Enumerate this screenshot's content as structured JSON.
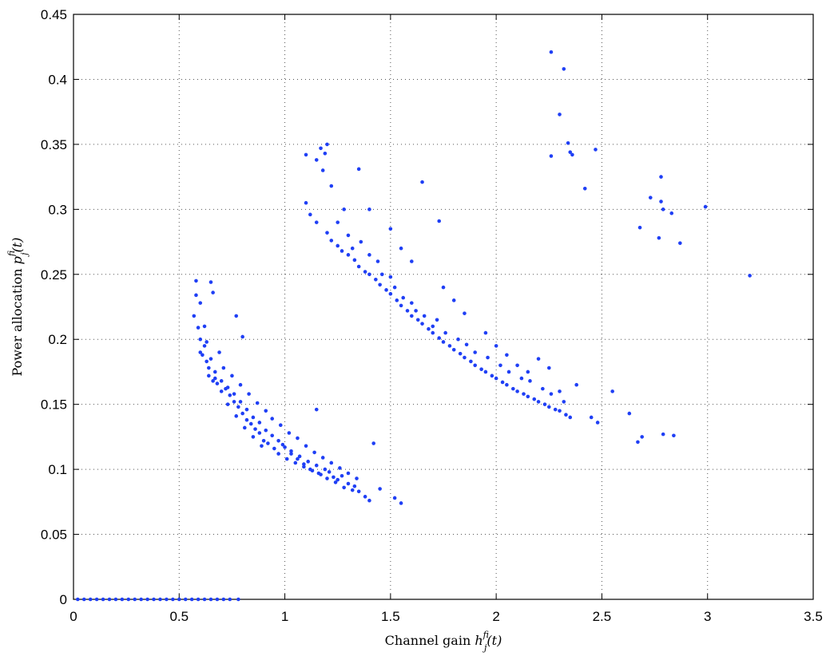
{
  "chart_data": {
    "type": "scatter",
    "title": "",
    "xlabel_text": "Channel gain ",
    "xlabel_math": {
      "base": "h",
      "sup": "f",
      "sub": "ij",
      "arg": "(t)"
    },
    "ylabel_text": "Power allocation ",
    "ylabel_math": {
      "base": "p",
      "sup": "f",
      "sub": "ij",
      "arg": "(t)"
    },
    "xlim": [
      0,
      3.5
    ],
    "ylim": [
      0,
      0.45
    ],
    "xticks": [
      0,
      0.5,
      1,
      1.5,
      2,
      2.5,
      3,
      3.5
    ],
    "xtick_labels": [
      "0",
      "0.5",
      "1",
      "1.5",
      "2",
      "2.5",
      "3",
      "3.5"
    ],
    "yticks": [
      0,
      0.05,
      0.1,
      0.15,
      0.2,
      0.25,
      0.3,
      0.35,
      0.4,
      0.45
    ],
    "ytick_labels": [
      "0",
      "0.05",
      "0.1",
      "0.15",
      "0.2",
      "0.25",
      "0.3",
      "0.35",
      "0.4",
      "0.45"
    ],
    "grid": true,
    "marker_color": "#1f3ff5",
    "series": [
      {
        "points": [
          [
            0.02,
            0
          ],
          [
            0.05,
            0
          ],
          [
            0.08,
            0
          ],
          [
            0.11,
            0
          ],
          [
            0.14,
            0
          ],
          [
            0.17,
            0
          ],
          [
            0.2,
            0
          ],
          [
            0.23,
            0
          ],
          [
            0.26,
            0
          ],
          [
            0.29,
            0
          ],
          [
            0.32,
            0
          ],
          [
            0.35,
            0
          ],
          [
            0.38,
            0
          ],
          [
            0.41,
            0
          ],
          [
            0.44,
            0
          ],
          [
            0.47,
            0
          ],
          [
            0.5,
            0
          ],
          [
            0.53,
            0
          ],
          [
            0.56,
            0
          ],
          [
            0.59,
            0
          ],
          [
            0.62,
            0
          ],
          [
            0.65,
            0
          ],
          [
            0.68,
            0
          ],
          [
            0.71,
            0
          ],
          [
            0.74,
            0
          ],
          [
            0.78,
            0
          ],
          [
            0.58,
            0.245
          ],
          [
            0.58,
            0.234
          ],
          [
            0.6,
            0.228
          ],
          [
            0.57,
            0.218
          ],
          [
            0.59,
            0.209
          ],
          [
            0.6,
            0.2
          ],
          [
            0.62,
            0.195
          ],
          [
            0.61,
            0.188
          ],
          [
            0.63,
            0.183
          ],
          [
            0.64,
            0.178
          ],
          [
            0.65,
            0.244
          ],
          [
            0.66,
            0.236
          ],
          [
            0.64,
            0.172
          ],
          [
            0.67,
            0.175
          ],
          [
            0.68,
            0.166
          ],
          [
            0.66,
            0.168
          ],
          [
            0.7,
            0.16
          ],
          [
            0.72,
            0.162
          ],
          [
            0.74,
            0.157
          ],
          [
            0.73,
            0.15
          ],
          [
            0.76,
            0.152
          ],
          [
            0.78,
            0.148
          ],
          [
            0.77,
            0.141
          ],
          [
            0.8,
            0.143
          ],
          [
            0.82,
            0.138
          ],
          [
            0.81,
            0.132
          ],
          [
            0.84,
            0.135
          ],
          [
            0.86,
            0.131
          ],
          [
            0.85,
            0.125
          ],
          [
            0.88,
            0.128
          ],
          [
            0.9,
            0.122
          ],
          [
            0.89,
            0.118
          ],
          [
            0.92,
            0.12
          ],
          [
            0.95,
            0.116
          ],
          [
            0.97,
            0.112
          ],
          [
            0.99,
            0.119
          ],
          [
            1.01,
            0.108
          ],
          [
            1.03,
            0.114
          ],
          [
            1.05,
            0.105
          ],
          [
            1.07,
            0.11
          ],
          [
            1.09,
            0.102
          ],
          [
            1.11,
            0.106
          ],
          [
            1.13,
            0.099
          ],
          [
            1.15,
            0.103
          ],
          [
            1.17,
            0.096
          ],
          [
            1.19,
            0.1
          ],
          [
            1.21,
            0.098
          ],
          [
            1.23,
            0.094
          ],
          [
            1.25,
            0.092
          ],
          [
            1.27,
            0.095
          ],
          [
            1.3,
            0.089
          ],
          [
            1.33,
            0.087
          ],
          [
            1.35,
            0.083
          ],
          [
            1.38,
            0.079
          ],
          [
            1.4,
            0.076
          ],
          [
            1.45,
            0.085
          ],
          [
            1.52,
            0.078
          ],
          [
            1.55,
            0.074
          ],
          [
            1.42,
            0.12
          ],
          [
            1.15,
            0.146
          ],
          [
            0.8,
            0.202
          ],
          [
            0.77,
            0.218
          ],
          [
            0.62,
            0.21
          ],
          [
            0.69,
            0.19
          ],
          [
            0.71,
            0.178
          ],
          [
            0.75,
            0.172
          ],
          [
            0.79,
            0.165
          ],
          [
            0.83,
            0.158
          ],
          [
            0.87,
            0.151
          ],
          [
            0.91,
            0.145
          ],
          [
            0.94,
            0.139
          ],
          [
            0.98,
            0.134
          ],
          [
            1.02,
            0.128
          ],
          [
            1.06,
            0.124
          ],
          [
            1.1,
            0.118
          ],
          [
            1.14,
            0.113
          ],
          [
            1.18,
            0.109
          ],
          [
            1.22,
            0.105
          ],
          [
            1.26,
            0.101
          ],
          [
            1.3,
            0.097
          ],
          [
            1.34,
            0.093
          ],
          [
            0.6,
            0.19
          ],
          [
            0.63,
            0.198
          ],
          [
            0.65,
            0.185
          ],
          [
            0.67,
            0.17
          ],
          [
            0.7,
            0.168
          ],
          [
            0.73,
            0.163
          ],
          [
            0.76,
            0.158
          ],
          [
            0.79,
            0.152
          ],
          [
            0.82,
            0.146
          ],
          [
            0.85,
            0.14
          ],
          [
            0.88,
            0.136
          ],
          [
            0.91,
            0.13
          ],
          [
            0.94,
            0.126
          ],
          [
            0.97,
            0.122
          ],
          [
            1.0,
            0.117
          ],
          [
            1.03,
            0.112
          ],
          [
            1.06,
            0.108
          ],
          [
            1.09,
            0.104
          ],
          [
            1.12,
            0.1
          ],
          [
            1.16,
            0.097
          ],
          [
            1.2,
            0.093
          ],
          [
            1.24,
            0.09
          ],
          [
            1.28,
            0.086
          ],
          [
            1.32,
            0.084
          ],
          [
            1.1,
            0.342
          ],
          [
            1.15,
            0.338
          ],
          [
            1.17,
            0.347
          ],
          [
            1.19,
            0.343
          ],
          [
            1.2,
            0.35
          ],
          [
            1.18,
            0.33
          ],
          [
            1.22,
            0.318
          ],
          [
            1.1,
            0.305
          ],
          [
            1.12,
            0.296
          ],
          [
            1.15,
            0.29
          ],
          [
            1.2,
            0.282
          ],
          [
            1.22,
            0.276
          ],
          [
            1.25,
            0.272
          ],
          [
            1.27,
            0.268
          ],
          [
            1.3,
            0.265
          ],
          [
            1.33,
            0.261
          ],
          [
            1.35,
            0.256
          ],
          [
            1.38,
            0.252
          ],
          [
            1.4,
            0.25
          ],
          [
            1.43,
            0.246
          ],
          [
            1.45,
            0.242
          ],
          [
            1.48,
            0.238
          ],
          [
            1.5,
            0.235
          ],
          [
            1.53,
            0.23
          ],
          [
            1.55,
            0.226
          ],
          [
            1.58,
            0.222
          ],
          [
            1.6,
            0.218
          ],
          [
            1.63,
            0.215
          ],
          [
            1.65,
            0.212
          ],
          [
            1.68,
            0.208
          ],
          [
            1.7,
            0.205
          ],
          [
            1.73,
            0.201
          ],
          [
            1.75,
            0.198
          ],
          [
            1.78,
            0.195
          ],
          [
            1.8,
            0.192
          ],
          [
            1.83,
            0.189
          ],
          [
            1.85,
            0.186
          ],
          [
            1.88,
            0.183
          ],
          [
            1.9,
            0.18
          ],
          [
            1.93,
            0.177
          ],
          [
            1.95,
            0.175
          ],
          [
            1.98,
            0.172
          ],
          [
            2.0,
            0.17
          ],
          [
            2.03,
            0.167
          ],
          [
            2.05,
            0.165
          ],
          [
            2.08,
            0.162
          ],
          [
            2.1,
            0.16
          ],
          [
            2.13,
            0.158
          ],
          [
            2.15,
            0.156
          ],
          [
            2.18,
            0.154
          ],
          [
            2.2,
            0.152
          ],
          [
            2.23,
            0.15
          ],
          [
            2.25,
            0.148
          ],
          [
            2.28,
            0.146
          ],
          [
            2.3,
            0.145
          ],
          [
            2.33,
            0.142
          ],
          [
            2.35,
            0.14
          ],
          [
            1.35,
            0.331
          ],
          [
            1.4,
            0.3
          ],
          [
            1.5,
            0.285
          ],
          [
            1.55,
            0.27
          ],
          [
            1.6,
            0.26
          ],
          [
            1.65,
            0.321
          ],
          [
            1.73,
            0.291
          ],
          [
            1.75,
            0.24
          ],
          [
            1.8,
            0.23
          ],
          [
            1.85,
            0.22
          ],
          [
            1.95,
            0.205
          ],
          [
            2.0,
            0.195
          ],
          [
            2.05,
            0.188
          ],
          [
            2.1,
            0.18
          ],
          [
            2.15,
            0.175
          ],
          [
            2.2,
            0.185
          ],
          [
            2.25,
            0.178
          ],
          [
            2.3,
            0.16
          ],
          [
            2.38,
            0.165
          ],
          [
            2.45,
            0.14
          ],
          [
            2.48,
            0.136
          ],
          [
            2.55,
            0.16
          ],
          [
            1.25,
            0.29
          ],
          [
            1.28,
            0.3
          ],
          [
            1.3,
            0.28
          ],
          [
            1.32,
            0.27
          ],
          [
            1.36,
            0.275
          ],
          [
            1.4,
            0.265
          ],
          [
            1.44,
            0.26
          ],
          [
            1.46,
            0.25
          ],
          [
            1.5,
            0.248
          ],
          [
            1.52,
            0.24
          ],
          [
            1.56,
            0.232
          ],
          [
            1.6,
            0.228
          ],
          [
            1.62,
            0.222
          ],
          [
            1.66,
            0.218
          ],
          [
            1.7,
            0.21
          ],
          [
            1.72,
            0.215
          ],
          [
            1.76,
            0.205
          ],
          [
            1.82,
            0.2
          ],
          [
            1.86,
            0.196
          ],
          [
            1.9,
            0.19
          ],
          [
            1.96,
            0.186
          ],
          [
            2.02,
            0.18
          ],
          [
            2.06,
            0.175
          ],
          [
            2.12,
            0.17
          ],
          [
            2.16,
            0.168
          ],
          [
            2.22,
            0.162
          ],
          [
            2.26,
            0.158
          ],
          [
            2.32,
            0.152
          ],
          [
            2.26,
            0.421
          ],
          [
            2.32,
            0.408
          ],
          [
            2.3,
            0.373
          ],
          [
            2.34,
            0.351
          ],
          [
            2.35,
            0.344
          ],
          [
            2.36,
            0.342
          ],
          [
            2.26,
            0.341
          ],
          [
            2.47,
            0.346
          ],
          [
            2.42,
            0.316
          ],
          [
            2.78,
            0.325
          ],
          [
            2.73,
            0.309
          ],
          [
            2.78,
            0.306
          ],
          [
            2.79,
            0.3
          ],
          [
            2.83,
            0.297
          ],
          [
            2.99,
            0.302
          ],
          [
            2.68,
            0.286
          ],
          [
            2.77,
            0.278
          ],
          [
            2.87,
            0.274
          ],
          [
            3.2,
            0.249
          ],
          [
            2.63,
            0.143
          ],
          [
            2.69,
            0.125
          ],
          [
            2.67,
            0.121
          ],
          [
            2.79,
            0.127
          ],
          [
            2.84,
            0.126
          ]
        ]
      }
    ]
  }
}
